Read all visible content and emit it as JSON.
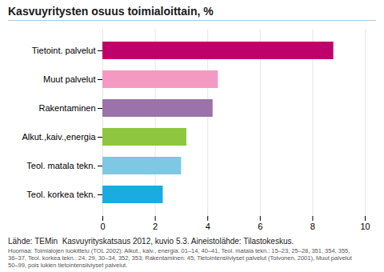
{
  "chart_data": {
    "type": "bar",
    "orientation": "horizontal",
    "title": "Kasvuyritysten osuus toimialoittain, %",
    "categories": [
      "Teol. korkea tekn.",
      "Teol. matala tekn.",
      "Alkut.,kaiv.,energia",
      "Rakentaminen",
      "Muut palvelut",
      "Tietoint. palvelut"
    ],
    "values": [
      2.3,
      3.0,
      3.2,
      4.2,
      4.4,
      8.8
    ],
    "colors": [
      "#1aace0",
      "#7ec8e3",
      "#8dc63f",
      "#9b72a9",
      "#f49ac2",
      "#c0006a"
    ],
    "xlim": [
      0,
      10
    ],
    "xticks": [
      0,
      2,
      4,
      6,
      8,
      10
    ],
    "grid": true,
    "annotations": [
      "Lähde: TEMin  Kasvuyrityskatsaus 2012, kuvio 5.3. Aineistolähde: Tilastokeskus.",
      "Huomaa: Toimialojen luokittelu (TOL 2002): Alkut., kaiv., energia: 01–14, 40–41, Teol. matala tekn.: 15–23, 25–28, 351, 354, 355,\n36–37, Teol. korkea tekn.: 24, 29, 30–34, 352, 353; Rakentaminen: 45; Tietointensiiviyset palvelut (Toivonen, 2001), Muut palvelut\n50–99, pois lukien tietointensiiviyset palvelut."
    ]
  }
}
